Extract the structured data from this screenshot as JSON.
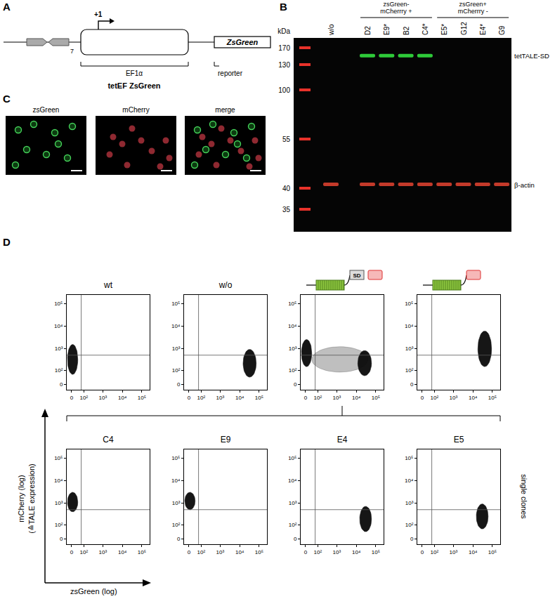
{
  "figure": {
    "A": {
      "letter": "A",
      "repeat_count": "7",
      "tss": "+1",
      "promoter": "EF1α",
      "reporter_gene": "ZsGreen",
      "reporter": "reporter",
      "construct": "tetEF ZsGreen"
    },
    "B": {
      "letter": "B",
      "unit": "kDa",
      "ladder": [
        170,
        130,
        100,
        55,
        40,
        35
      ],
      "lanes": [
        "w/o",
        "D2",
        "E9*",
        "B2",
        "C4*",
        "E5*",
        "G12",
        "E4*",
        "G9"
      ],
      "groups": [
        {
          "label": "zsGreen-\nmCherrry +",
          "lanes": [
            "D2",
            "E9*",
            "B2",
            "C4*"
          ]
        },
        {
          "label": "zsGreen+\nmCherrry -",
          "lanes": [
            "E5*",
            "G12",
            "E4*",
            "G9"
          ]
        }
      ],
      "bands": [
        {
          "label": "tetTALE-SD",
          "kDa": 150,
          "color": "#33e03f",
          "lanes": [
            "D2",
            "E9*",
            "B2",
            "C4*"
          ]
        },
        {
          "label": "β-actin",
          "kDa": 41,
          "color": "#d8402f",
          "lanes": [
            "w/o",
            "D2",
            "E9*",
            "B2",
            "C4*",
            "E5*",
            "G12",
            "E4*",
            "G9"
          ]
        }
      ]
    },
    "C": {
      "letter": "C",
      "images": [
        "zsGreen",
        "mCherry",
        "merge"
      ]
    },
    "D": {
      "letter": "D",
      "ylabel": [
        "mCherry (log)",
        "(≙TALE expression)"
      ],
      "xlabel": "zsGreen (log)",
      "side_label": "single clones"
    }
  },
  "chart_data": [
    {
      "type": "scatter",
      "title": "wt",
      "log": true,
      "xlim": [
        -30,
        250000
      ],
      "ylim": [
        -30,
        250000
      ],
      "xticks": [
        0,
        {
          "value": 100,
          "label": "10²"
        },
        {
          "value": 1000,
          "label": "10³"
        },
        {
          "value": 10000,
          "label": "10⁴"
        },
        {
          "value": 100000,
          "label": "10⁵"
        }
      ],
      "yticks": [
        0,
        {
          "value": 100,
          "label": "10²"
        },
        {
          "value": 1000,
          "label": "10³"
        },
        {
          "value": 10000,
          "label": "10⁴"
        },
        {
          "value": 100000,
          "label": "10⁵"
        }
      ],
      "gates": {
        "x": 70,
        "y": 500
      },
      "populations": [
        {
          "x": [
            -25,
            40
          ],
          "y": [
            60,
            1500
          ],
          "marker": "dense"
        }
      ]
    },
    {
      "type": "scatter",
      "title": "w/o",
      "log": true,
      "xlim": [
        -30,
        250000
      ],
      "ylim": [
        -30,
        250000
      ],
      "xticks": [
        0,
        {
          "value": 100,
          "label": "10²"
        },
        {
          "value": 1000,
          "label": "10³"
        },
        {
          "value": 10000,
          "label": "10⁴"
        },
        {
          "value": 100000,
          "label": "10⁵"
        }
      ],
      "yticks": [
        0,
        {
          "value": 100,
          "label": "10²"
        },
        {
          "value": 1000,
          "label": "10³"
        },
        {
          "value": 10000,
          "label": "10⁴"
        },
        {
          "value": 100000,
          "label": "10⁵"
        }
      ],
      "gates": {
        "x": 70,
        "y": 500
      },
      "populations": [
        {
          "x": [
            15000,
            70000
          ],
          "y": [
            40,
            900
          ],
          "marker": "dense"
        }
      ]
    },
    {
      "type": "scatter",
      "annotation": "SD",
      "log": true,
      "xlim": [
        -30,
        250000
      ],
      "ylim": [
        -30,
        250000
      ],
      "xticks": [
        0,
        {
          "value": 100,
          "label": "10²"
        },
        {
          "value": 1000,
          "label": "10³"
        },
        {
          "value": 10000,
          "label": "10⁴"
        },
        {
          "value": 100000,
          "label": "10⁵"
        }
      ],
      "yticks": [
        0,
        {
          "value": 100,
          "label": "10²"
        },
        {
          "value": 1000,
          "label": "10³"
        },
        {
          "value": 10000,
          "label": "10⁴"
        },
        {
          "value": 100000,
          "label": "10⁵"
        }
      ],
      "gates": {
        "x": 70,
        "y": 500
      },
      "populations": [
        {
          "x": [
            -25,
            40
          ],
          "y": [
            150,
            2500
          ],
          "marker": "dense"
        },
        {
          "x": [
            40,
            40000
          ],
          "y": [
            80,
            1200
          ],
          "marker": "sparse"
        },
        {
          "x": [
            12000,
            60000
          ],
          "y": [
            50,
            800
          ],
          "marker": "dense"
        }
      ]
    },
    {
      "type": "scatter",
      "log": true,
      "xlim": [
        -30,
        250000
      ],
      "ylim": [
        -30,
        250000
      ],
      "xticks": [
        0,
        {
          "value": 100,
          "label": "10²"
        },
        {
          "value": 1000,
          "label": "10³"
        },
        {
          "value": 10000,
          "label": "10⁴"
        },
        {
          "value": 100000,
          "label": "10⁵"
        }
      ],
      "yticks": [
        0,
        {
          "value": 100,
          "label": "10²"
        },
        {
          "value": 1000,
          "label": "10³"
        },
        {
          "value": 10000,
          "label": "10⁴"
        },
        {
          "value": 100000,
          "label": "10⁵"
        }
      ],
      "gates": {
        "x": 70,
        "y": 500
      },
      "populations": [
        {
          "x": [
            18000,
            90000
          ],
          "y": [
            150,
            6000
          ],
          "marker": "dense"
        }
      ]
    },
    {
      "type": "scatter",
      "title": "C4",
      "log": true,
      "xlim": [
        -30,
        250000
      ],
      "ylim": [
        -30,
        250000
      ],
      "xticks": [
        0,
        {
          "value": 100,
          "label": "10²"
        },
        {
          "value": 1000,
          "label": "10³"
        },
        {
          "value": 10000,
          "label": "10⁴"
        },
        {
          "value": 100000,
          "label": "10⁵"
        }
      ],
      "yticks": [
        0,
        {
          "value": 100,
          "label": "10²"
        },
        {
          "value": 1000,
          "label": "10³"
        },
        {
          "value": 10000,
          "label": "10⁴"
        },
        {
          "value": 100000,
          "label": "10⁵"
        }
      ],
      "gates": {
        "x": 70,
        "y": 500
      },
      "populations": [
        {
          "x": [
            -25,
            40
          ],
          "y": [
            400,
            3000
          ],
          "marker": "dense"
        }
      ]
    },
    {
      "type": "scatter",
      "title": "E9",
      "log": true,
      "xlim": [
        -30,
        250000
      ],
      "ylim": [
        -30,
        250000
      ],
      "xticks": [
        0,
        {
          "value": 100,
          "label": "10²"
        },
        {
          "value": 1000,
          "label": "10³"
        },
        {
          "value": 10000,
          "label": "10⁴"
        },
        {
          "value": 100000,
          "label": "10⁵"
        }
      ],
      "yticks": [
        0,
        {
          "value": 100,
          "label": "10²"
        },
        {
          "value": 1000,
          "label": "10³"
        },
        {
          "value": 10000,
          "label": "10⁴"
        },
        {
          "value": 100000,
          "label": "10⁵"
        }
      ],
      "gates": {
        "x": 70,
        "y": 500
      },
      "populations": [
        {
          "x": [
            -25,
            40
          ],
          "y": [
            500,
            3000
          ],
          "marker": "dense"
        }
      ]
    },
    {
      "type": "scatter",
      "title": "E4",
      "log": true,
      "xlim": [
        -30,
        250000
      ],
      "ylim": [
        -30,
        250000
      ],
      "xticks": [
        0,
        {
          "value": 100,
          "label": "10²"
        },
        {
          "value": 1000,
          "label": "10³"
        },
        {
          "value": 10000,
          "label": "10⁴"
        },
        {
          "value": 100000,
          "label": "10⁵"
        }
      ],
      "yticks": [
        0,
        {
          "value": 100,
          "label": "10²"
        },
        {
          "value": 1000,
          "label": "10³"
        },
        {
          "value": 10000,
          "label": "10⁴"
        },
        {
          "value": 100000,
          "label": "10⁵"
        }
      ],
      "gates": {
        "x": 70,
        "y": 500
      },
      "populations": [
        {
          "x": [
            15000,
            60000
          ],
          "y": [
            40,
            700
          ],
          "marker": "dense"
        }
      ]
    },
    {
      "type": "scatter",
      "title": "E5",
      "log": true,
      "xlim": [
        -30,
        250000
      ],
      "ylim": [
        -30,
        250000
      ],
      "xticks": [
        0,
        {
          "value": 100,
          "label": "10²"
        },
        {
          "value": 1000,
          "label": "10³"
        },
        {
          "value": 10000,
          "label": "10⁴"
        },
        {
          "value": 100000,
          "label": "10⁵"
        }
      ],
      "yticks": [
        0,
        {
          "value": 100,
          "label": "10²"
        },
        {
          "value": 1000,
          "label": "10³"
        },
        {
          "value": 10000,
          "label": "10⁴"
        },
        {
          "value": 100000,
          "label": "10⁵"
        }
      ],
      "gates": {
        "x": 70,
        "y": 500
      },
      "populations": [
        {
          "x": [
            15000,
            60000
          ],
          "y": [
            60,
            900
          ],
          "marker": "dense"
        }
      ]
    }
  ]
}
